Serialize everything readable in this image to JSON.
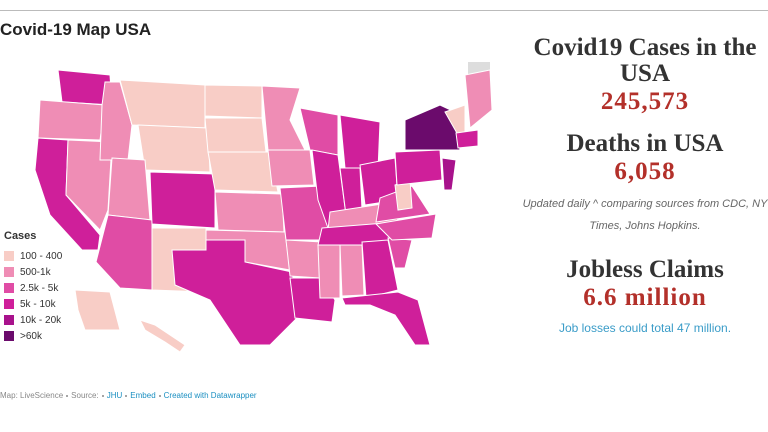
{
  "map": {
    "title": "Covid-19 Map USA",
    "legend": {
      "title": "Cases",
      "items": [
        {
          "label": "100 - 400",
          "color": "#f8cdc6"
        },
        {
          "label": "500-1k",
          "color": "#ef8db5"
        },
        {
          "label": "2.5k - 5k",
          "color": "#e04ca5"
        },
        {
          "label": "5k - 10k",
          "color": "#cf1f9a"
        },
        {
          "label": "10k - 20k",
          "color": "#a8128c"
        },
        {
          "label": ">60k",
          "color": "#6b0b6c"
        }
      ]
    },
    "footer": [
      "Map: LiveScience",
      "Source:",
      "JHU",
      "Embed",
      "Created with Datawrapper"
    ]
  },
  "stats": {
    "cases_title": "Covid19 Cases in the USA",
    "cases": "245,573",
    "deaths_title": "Deaths in USA",
    "deaths": "6,058",
    "note": "Updated daily ^ comparing sources from CDC, NY Times, Johns Hopkins.",
    "jobless_title": "Jobless Claims",
    "jobless": "6.6 million",
    "jobless_note": "Job losses could total 47 million."
  }
}
